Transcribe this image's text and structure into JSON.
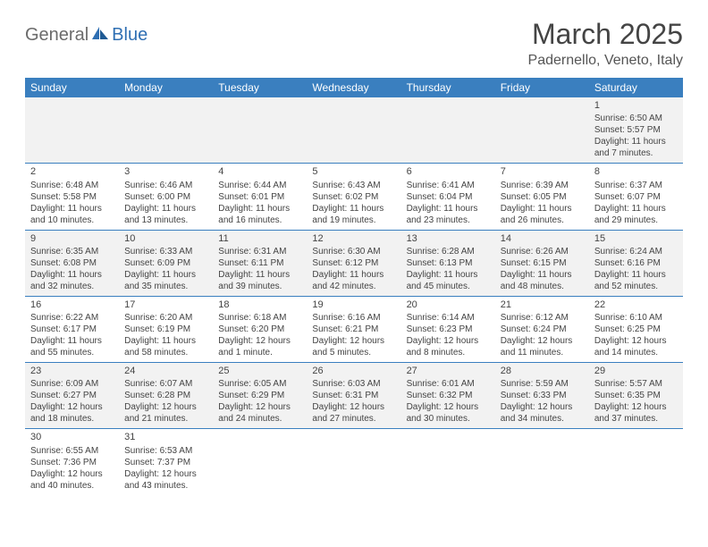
{
  "logo": {
    "part1": "General",
    "part2": "Blue"
  },
  "title": "March 2025",
  "location": "Padernello, Veneto, Italy",
  "colors": {
    "header_bg": "#3a7fbf",
    "header_text": "#ffffff",
    "row_even_bg": "#f2f2f2",
    "row_odd_bg": "#ffffff",
    "row_divider": "#3a7fbf",
    "body_text": "#444444",
    "logo_gray": "#6b6b6b",
    "logo_blue": "#2f6fb3"
  },
  "day_headers": [
    "Sunday",
    "Monday",
    "Tuesday",
    "Wednesday",
    "Thursday",
    "Friday",
    "Saturday"
  ],
  "weeks": [
    [
      null,
      null,
      null,
      null,
      null,
      null,
      {
        "n": "1",
        "sr": "Sunrise: 6:50 AM",
        "ss": "Sunset: 5:57 PM",
        "d1": "Daylight: 11 hours",
        "d2": "and 7 minutes."
      }
    ],
    [
      {
        "n": "2",
        "sr": "Sunrise: 6:48 AM",
        "ss": "Sunset: 5:58 PM",
        "d1": "Daylight: 11 hours",
        "d2": "and 10 minutes."
      },
      {
        "n": "3",
        "sr": "Sunrise: 6:46 AM",
        "ss": "Sunset: 6:00 PM",
        "d1": "Daylight: 11 hours",
        "d2": "and 13 minutes."
      },
      {
        "n": "4",
        "sr": "Sunrise: 6:44 AM",
        "ss": "Sunset: 6:01 PM",
        "d1": "Daylight: 11 hours",
        "d2": "and 16 minutes."
      },
      {
        "n": "5",
        "sr": "Sunrise: 6:43 AM",
        "ss": "Sunset: 6:02 PM",
        "d1": "Daylight: 11 hours",
        "d2": "and 19 minutes."
      },
      {
        "n": "6",
        "sr": "Sunrise: 6:41 AM",
        "ss": "Sunset: 6:04 PM",
        "d1": "Daylight: 11 hours",
        "d2": "and 23 minutes."
      },
      {
        "n": "7",
        "sr": "Sunrise: 6:39 AM",
        "ss": "Sunset: 6:05 PM",
        "d1": "Daylight: 11 hours",
        "d2": "and 26 minutes."
      },
      {
        "n": "8",
        "sr": "Sunrise: 6:37 AM",
        "ss": "Sunset: 6:07 PM",
        "d1": "Daylight: 11 hours",
        "d2": "and 29 minutes."
      }
    ],
    [
      {
        "n": "9",
        "sr": "Sunrise: 6:35 AM",
        "ss": "Sunset: 6:08 PM",
        "d1": "Daylight: 11 hours",
        "d2": "and 32 minutes."
      },
      {
        "n": "10",
        "sr": "Sunrise: 6:33 AM",
        "ss": "Sunset: 6:09 PM",
        "d1": "Daylight: 11 hours",
        "d2": "and 35 minutes."
      },
      {
        "n": "11",
        "sr": "Sunrise: 6:31 AM",
        "ss": "Sunset: 6:11 PM",
        "d1": "Daylight: 11 hours",
        "d2": "and 39 minutes."
      },
      {
        "n": "12",
        "sr": "Sunrise: 6:30 AM",
        "ss": "Sunset: 6:12 PM",
        "d1": "Daylight: 11 hours",
        "d2": "and 42 minutes."
      },
      {
        "n": "13",
        "sr": "Sunrise: 6:28 AM",
        "ss": "Sunset: 6:13 PM",
        "d1": "Daylight: 11 hours",
        "d2": "and 45 minutes."
      },
      {
        "n": "14",
        "sr": "Sunrise: 6:26 AM",
        "ss": "Sunset: 6:15 PM",
        "d1": "Daylight: 11 hours",
        "d2": "and 48 minutes."
      },
      {
        "n": "15",
        "sr": "Sunrise: 6:24 AM",
        "ss": "Sunset: 6:16 PM",
        "d1": "Daylight: 11 hours",
        "d2": "and 52 minutes."
      }
    ],
    [
      {
        "n": "16",
        "sr": "Sunrise: 6:22 AM",
        "ss": "Sunset: 6:17 PM",
        "d1": "Daylight: 11 hours",
        "d2": "and 55 minutes."
      },
      {
        "n": "17",
        "sr": "Sunrise: 6:20 AM",
        "ss": "Sunset: 6:19 PM",
        "d1": "Daylight: 11 hours",
        "d2": "and 58 minutes."
      },
      {
        "n": "18",
        "sr": "Sunrise: 6:18 AM",
        "ss": "Sunset: 6:20 PM",
        "d1": "Daylight: 12 hours",
        "d2": "and 1 minute."
      },
      {
        "n": "19",
        "sr": "Sunrise: 6:16 AM",
        "ss": "Sunset: 6:21 PM",
        "d1": "Daylight: 12 hours",
        "d2": "and 5 minutes."
      },
      {
        "n": "20",
        "sr": "Sunrise: 6:14 AM",
        "ss": "Sunset: 6:23 PM",
        "d1": "Daylight: 12 hours",
        "d2": "and 8 minutes."
      },
      {
        "n": "21",
        "sr": "Sunrise: 6:12 AM",
        "ss": "Sunset: 6:24 PM",
        "d1": "Daylight: 12 hours",
        "d2": "and 11 minutes."
      },
      {
        "n": "22",
        "sr": "Sunrise: 6:10 AM",
        "ss": "Sunset: 6:25 PM",
        "d1": "Daylight: 12 hours",
        "d2": "and 14 minutes."
      }
    ],
    [
      {
        "n": "23",
        "sr": "Sunrise: 6:09 AM",
        "ss": "Sunset: 6:27 PM",
        "d1": "Daylight: 12 hours",
        "d2": "and 18 minutes."
      },
      {
        "n": "24",
        "sr": "Sunrise: 6:07 AM",
        "ss": "Sunset: 6:28 PM",
        "d1": "Daylight: 12 hours",
        "d2": "and 21 minutes."
      },
      {
        "n": "25",
        "sr": "Sunrise: 6:05 AM",
        "ss": "Sunset: 6:29 PM",
        "d1": "Daylight: 12 hours",
        "d2": "and 24 minutes."
      },
      {
        "n": "26",
        "sr": "Sunrise: 6:03 AM",
        "ss": "Sunset: 6:31 PM",
        "d1": "Daylight: 12 hours",
        "d2": "and 27 minutes."
      },
      {
        "n": "27",
        "sr": "Sunrise: 6:01 AM",
        "ss": "Sunset: 6:32 PM",
        "d1": "Daylight: 12 hours",
        "d2": "and 30 minutes."
      },
      {
        "n": "28",
        "sr": "Sunrise: 5:59 AM",
        "ss": "Sunset: 6:33 PM",
        "d1": "Daylight: 12 hours",
        "d2": "and 34 minutes."
      },
      {
        "n": "29",
        "sr": "Sunrise: 5:57 AM",
        "ss": "Sunset: 6:35 PM",
        "d1": "Daylight: 12 hours",
        "d2": "and 37 minutes."
      }
    ],
    [
      {
        "n": "30",
        "sr": "Sunrise: 6:55 AM",
        "ss": "Sunset: 7:36 PM",
        "d1": "Daylight: 12 hours",
        "d2": "and 40 minutes."
      },
      {
        "n": "31",
        "sr": "Sunrise: 6:53 AM",
        "ss": "Sunset: 7:37 PM",
        "d1": "Daylight: 12 hours",
        "d2": "and 43 minutes."
      },
      null,
      null,
      null,
      null,
      null
    ]
  ]
}
